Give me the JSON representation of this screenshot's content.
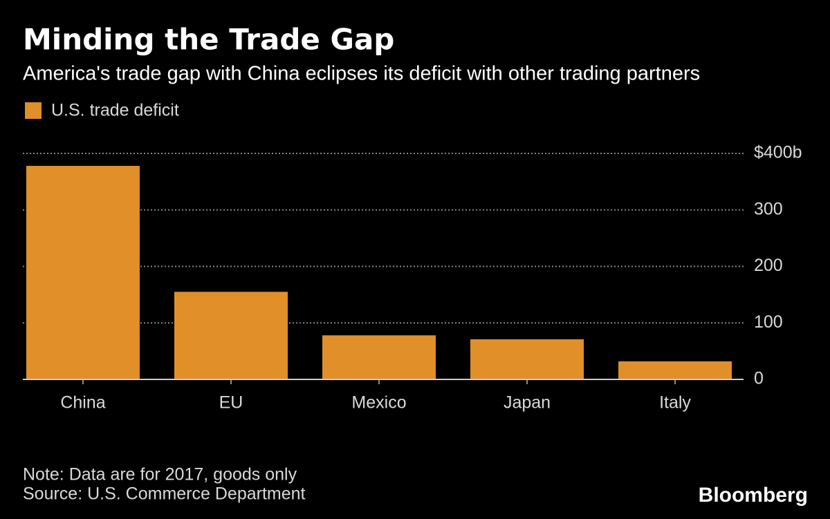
{
  "chart_data": {
    "type": "bar",
    "title": "Minding the Trade Gap",
    "subtitle": "America's trade gap with China eclipses its deficit with other trading partners",
    "categories": [
      "China",
      "EU",
      "Mexico",
      "Japan",
      "Italy"
    ],
    "series": [
      {
        "name": "U.S. trade deficit",
        "color": "#e08f29",
        "values": [
          378,
          155,
          78,
          71,
          32
        ]
      }
    ],
    "ylim": [
      0,
      400
    ],
    "yticks": [
      0,
      100,
      200,
      300,
      {
        "value": 400,
        "label": "$400b"
      }
    ],
    "grid": true,
    "note": "Note: Data are for 2017, goods only",
    "source": "Source: U.S. Commerce Department",
    "logo": "Bloomberg"
  }
}
